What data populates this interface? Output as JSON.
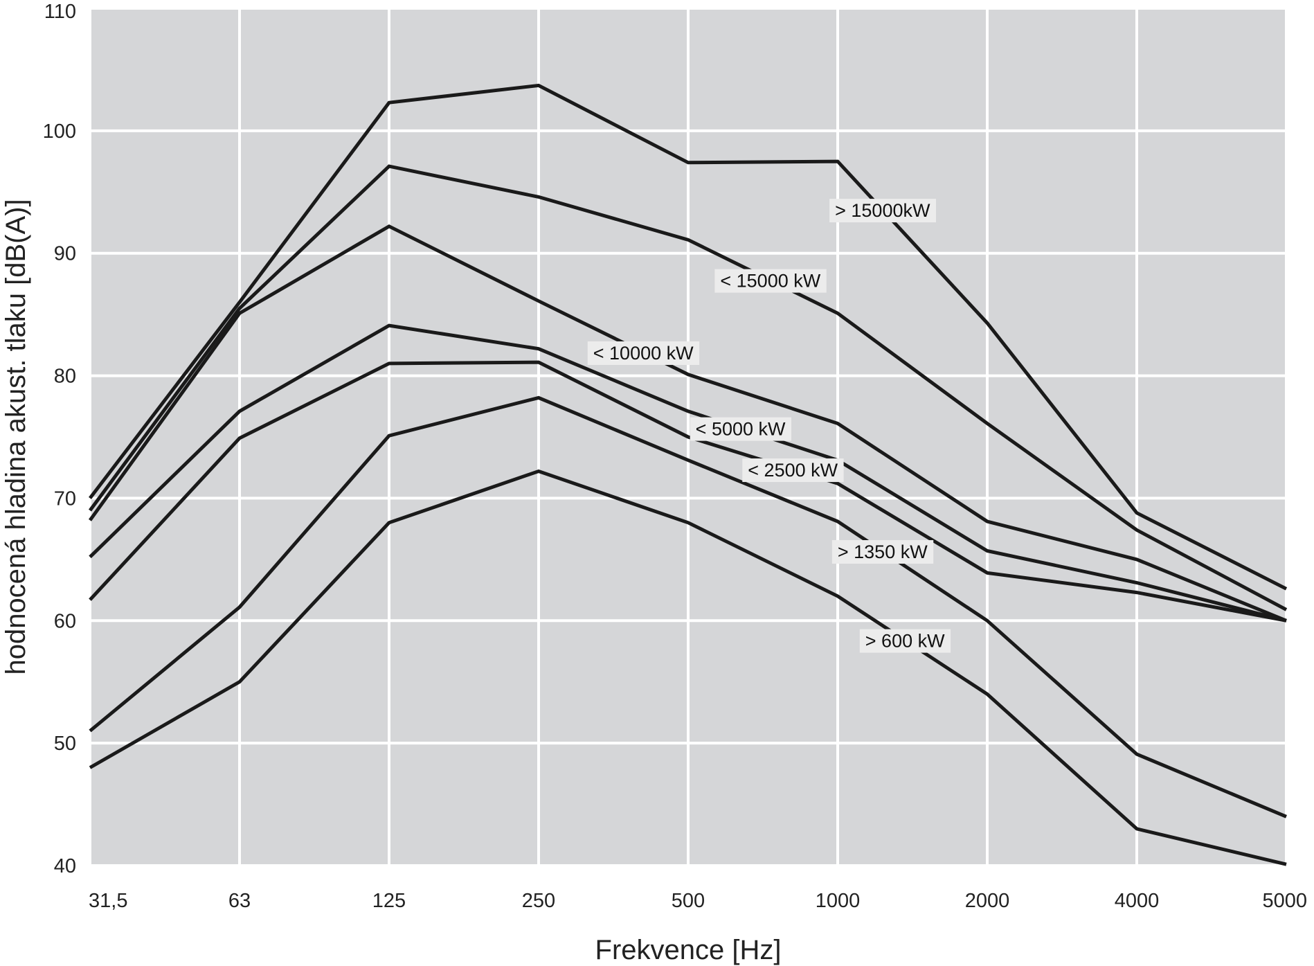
{
  "chart_data": {
    "type": "line",
    "title": "",
    "xlabel": "Frekvence [Hz]",
    "ylabel": "hodnocená hladina akust. tlaku [dB(A)]",
    "x_scale": "categorical",
    "categories": [
      "31,5",
      "63",
      "125",
      "250",
      "500",
      "1000",
      "2000",
      "4000",
      "5000"
    ],
    "yticks": [
      "40",
      "50",
      "60",
      "70",
      "80",
      "90",
      "100",
      "110"
    ],
    "ylim": [
      40,
      110
    ],
    "grid": true,
    "line_color": "#1a1a1a",
    "background_color": "#d5d6d8",
    "grid_color": "#ffffff",
    "series": [
      {
        "name": "> 15000kW",
        "values": [
          70,
          86,
          102.3,
          103.7,
          97.4,
          97.5,
          84.3,
          68.8,
          62.6
        ]
      },
      {
        "name": "< 15000 kW",
        "values": [
          69,
          85.5,
          97.1,
          94.6,
          91.1,
          85.1,
          76.1,
          67.4,
          60.9
        ]
      },
      {
        "name": "< 10000 kW",
        "values": [
          68.2,
          85.1,
          92.2,
          86.1,
          80.1,
          76.1,
          68.1,
          65.0,
          60.0
        ]
      },
      {
        "name": "< 5000 kW",
        "values": [
          65.2,
          77.1,
          84.1,
          82.2,
          77.1,
          73.1,
          65.7,
          63.1,
          60.0
        ]
      },
      {
        "name": "< 2500 kW",
        "values": [
          61.7,
          74.9,
          81.0,
          81.1,
          75.0,
          71.2,
          63.9,
          62.3,
          60.0
        ]
      },
      {
        "name": "> 1350 kW",
        "values": [
          51.0,
          61.1,
          75.1,
          78.2,
          73.1,
          68.1,
          60.0,
          49.1,
          44.0
        ]
      },
      {
        "name": "> 600 kW",
        "values": [
          48.0,
          55.0,
          68.0,
          72.2,
          68.0,
          62.0,
          54.0,
          43.0,
          40.1
        ]
      }
    ]
  }
}
